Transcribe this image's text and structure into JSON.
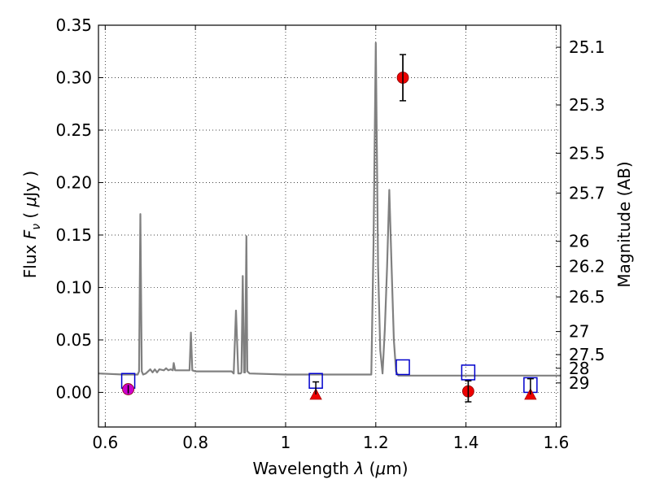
{
  "chart_data": {
    "type": "scatter",
    "title": "",
    "xlabel": "Wavelength  λ (μm)",
    "ylabel": "Flux  Fν  ( μJy )",
    "ylabel_right": "Magnitude (AB)",
    "xlim": [
      0.585,
      1.61
    ],
    "ylim": [
      -0.033,
      0.35
    ],
    "grid": true,
    "x_ticks": [
      0.6,
      0.8,
      1.0,
      1.2,
      1.4,
      1.6
    ],
    "x_tick_labels": [
      "0.6",
      "0.8",
      "1",
      "1.2",
      "1.4",
      "1.6"
    ],
    "y_ticks": [
      0.0,
      0.05,
      0.1,
      0.15,
      0.2,
      0.25,
      0.3,
      0.35
    ],
    "y_tick_labels": [
      "0.00",
      "0.05",
      "0.10",
      "0.15",
      "0.20",
      "0.25",
      "0.30",
      "0.35"
    ],
    "right_ticks": [
      {
        "label": "25.1",
        "flux": 0.329
      },
      {
        "label": "25.3",
        "flux": 0.274
      },
      {
        "label": "25.5",
        "flux": 0.228
      },
      {
        "label": "25.7",
        "flux": 0.19
      },
      {
        "label": "26",
        "flux": 0.144
      },
      {
        "label": "26.2",
        "flux": 0.12
      },
      {
        "label": "26.5",
        "flux": 0.091
      },
      {
        "label": "27",
        "flux": 0.058
      },
      {
        "label": "27.5",
        "flux": 0.036
      },
      {
        "label": "28",
        "flux": 0.023
      },
      {
        "label": "29",
        "flux": 0.009
      }
    ],
    "series": [
      {
        "kind": "spectrum_line",
        "color": "#808080",
        "x": [
          0.585,
          0.64,
          0.672,
          0.675,
          0.678,
          0.681,
          0.684,
          0.69,
          0.7,
          0.705,
          0.71,
          0.715,
          0.72,
          0.73,
          0.735,
          0.74,
          0.745,
          0.75,
          0.752,
          0.755,
          0.76,
          0.78,
          0.787,
          0.79,
          0.793,
          0.8,
          0.85,
          0.88,
          0.885,
          0.89,
          0.895,
          0.9,
          0.902,
          0.905,
          0.908,
          0.91,
          0.913,
          0.915,
          0.918,
          0.92,
          1.0,
          1.19,
          1.195,
          1.2,
          1.205,
          1.21,
          1.215,
          1.22,
          1.225,
          1.23,
          1.235,
          1.24,
          1.245,
          1.25,
          1.3,
          1.4,
          1.5,
          1.61
        ],
        "y": [
          0.018,
          0.017,
          0.017,
          0.02,
          0.17,
          0.02,
          0.017,
          0.018,
          0.022,
          0.019,
          0.022,
          0.019,
          0.022,
          0.021,
          0.023,
          0.021,
          0.022,
          0.021,
          0.028,
          0.021,
          0.021,
          0.021,
          0.021,
          0.057,
          0.021,
          0.02,
          0.02,
          0.02,
          0.018,
          0.078,
          0.018,
          0.018,
          0.019,
          0.111,
          0.019,
          0.019,
          0.149,
          0.02,
          0.019,
          0.018,
          0.017,
          0.017,
          0.14,
          0.333,
          0.12,
          0.04,
          0.018,
          0.06,
          0.12,
          0.193,
          0.12,
          0.05,
          0.02,
          0.016,
          0.016,
          0.016,
          0.016,
          0.016
        ]
      },
      {
        "kind": "model_squares",
        "color": "#0000cc",
        "x": [
          0.651,
          1.067,
          1.26,
          1.405,
          1.543
        ],
        "y": [
          0.011,
          0.011,
          0.024,
          0.019,
          0.007
        ]
      },
      {
        "kind": "observed_points",
        "color": "#ee0000",
        "points": [
          {
            "x": 1.26,
            "y": 0.3,
            "err": 0.022,
            "marker": "circle"
          },
          {
            "x": 1.405,
            "y": 0.001,
            "err": 0.01,
            "marker": "circle"
          },
          {
            "x": 1.067,
            "y": -0.002,
            "err": 0.0,
            "marker": "triangle"
          },
          {
            "x": 1.543,
            "y": -0.002,
            "err": 0.0,
            "marker": "triangle"
          }
        ]
      },
      {
        "kind": "observed_points_alt",
        "color": "#cc00cc",
        "points": [
          {
            "x": 0.651,
            "y": 0.003,
            "err": 0.004,
            "marker": "circle"
          }
        ]
      },
      {
        "kind": "upper_limit_errorbars",
        "color": "#000000",
        "points": [
          {
            "x": 1.067,
            "y_low": -0.002,
            "y_high": 0.01
          },
          {
            "x": 1.543,
            "y_low": -0.002,
            "y_high": 0.013
          }
        ]
      }
    ]
  }
}
